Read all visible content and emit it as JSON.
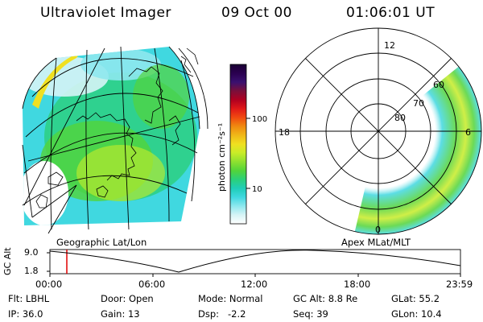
{
  "header": {
    "title": "Ultraviolet Imager",
    "date": "09 Oct 00",
    "time": "01:06:01 UT"
  },
  "colorbar": {
    "unit_label": "photon cm⁻²s⁻¹",
    "ticks": [
      "100",
      "10"
    ],
    "stops": [
      "#1a0033",
      "#2a0050",
      "#3a1070",
      "#7a0f3a",
      "#b00020",
      "#e01818",
      "#f04a10",
      "#f08a10",
      "#f0b818",
      "#f0e020",
      "#c8ec28",
      "#8ee030",
      "#52d43a",
      "#2ad07a",
      "#20cdb8",
      "#40d8e0",
      "#8ee8ee",
      "#d6f4f6",
      "#ffffff"
    ]
  },
  "left_panel": {
    "caption": "Geographic Lat/Lon"
  },
  "right_panel": {
    "caption": "Apex MLat/MLT",
    "mlt_labels": {
      "top": "12",
      "left": "18",
      "right": "6",
      "bottom": "0"
    },
    "mlat_labels": [
      "60",
      "70",
      "80"
    ]
  },
  "timeline": {
    "axis_label": "GC Alt",
    "y_ticks": [
      "9.0",
      "1.8"
    ],
    "x_ticks": [
      "00:00",
      "06:00",
      "12:00",
      "18:00",
      "23:59"
    ]
  },
  "status": {
    "flt_label": "Flt:",
    "flt_value": "LBHL",
    "ip_label": "IP:",
    "ip_value": "36.0",
    "door_label": "Door:",
    "door_value": "Open",
    "gain_label": "Gain:",
    "gain_value": "13",
    "mode_label": "Mode:",
    "mode_value": "Normal",
    "dsp_label": "Dsp:",
    "dsp_value": "-2.2",
    "gcalt_label": "GC Alt:",
    "gcalt_value": "8.8 Re",
    "seq_label": "Seq:",
    "seq_value": "39",
    "glat_label": "GLat:",
    "glat_value": "55.2",
    "glon_label": "GLon:",
    "glon_value": "10.4"
  },
  "colors": {
    "text": "#000000",
    "marker": "#e00000",
    "aurora_green": "#52d43a",
    "aurora_cyan": "#40d8e0"
  }
}
